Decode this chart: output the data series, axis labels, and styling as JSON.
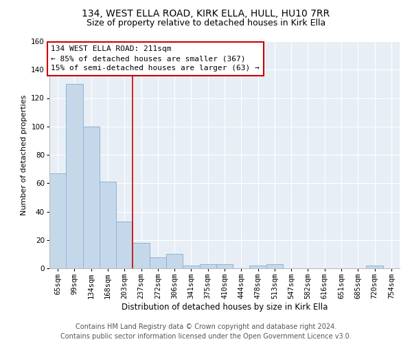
{
  "title": "134, WEST ELLA ROAD, KIRK ELLA, HULL, HU10 7RR",
  "subtitle": "Size of property relative to detached houses in Kirk Ella",
  "xlabel": "Distribution of detached houses by size in Kirk Ella",
  "ylabel": "Number of detached properties",
  "categories": [
    "65sqm",
    "99sqm",
    "134sqm",
    "168sqm",
    "203sqm",
    "237sqm",
    "272sqm",
    "306sqm",
    "341sqm",
    "375sqm",
    "410sqm",
    "444sqm",
    "478sqm",
    "513sqm",
    "547sqm",
    "582sqm",
    "616sqm",
    "651sqm",
    "685sqm",
    "720sqm",
    "754sqm"
  ],
  "values": [
    67,
    130,
    100,
    61,
    33,
    18,
    8,
    10,
    2,
    3,
    3,
    0,
    2,
    3,
    0,
    0,
    0,
    0,
    0,
    2,
    0
  ],
  "bar_color": "#c5d8ea",
  "bar_edge_color": "#8ab4d4",
  "vline_x": 4.5,
  "vline_color": "#cc0000",
  "annotation_line1": "134 WEST ELLA ROAD: 211sqm",
  "annotation_line2": "← 85% of detached houses are smaller (367)",
  "annotation_line3": "15% of semi-detached houses are larger (63) →",
  "annotation_box_color": "#ffffff",
  "annotation_box_edge_color": "#cc0000",
  "ylim": [
    0,
    160
  ],
  "yticks": [
    0,
    20,
    40,
    60,
    80,
    100,
    120,
    140,
    160
  ],
  "fig_background_color": "#ffffff",
  "ax_background_color": "#e8eef5",
  "footer_text": "Contains HM Land Registry data © Crown copyright and database right 2024.\nContains public sector information licensed under the Open Government Licence v3.0.",
  "title_fontsize": 10,
  "subtitle_fontsize": 9,
  "xlabel_fontsize": 8.5,
  "ylabel_fontsize": 8,
  "annotation_fontsize": 8,
  "footer_fontsize": 7,
  "tick_fontsize": 7.5
}
